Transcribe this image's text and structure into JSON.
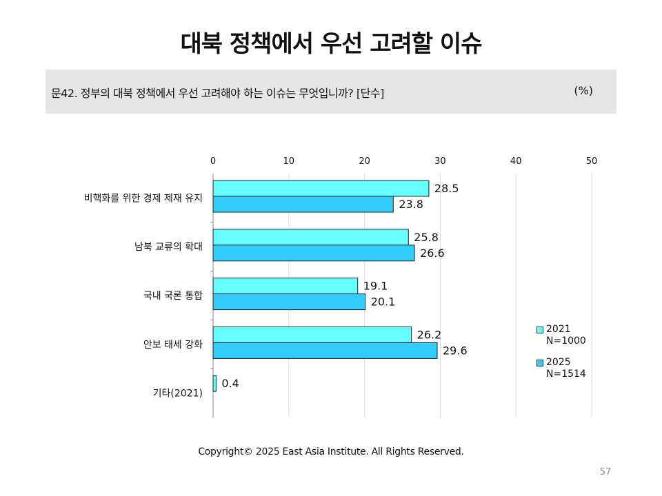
{
  "slide": {
    "title": "대북 정책에서 우선 고려할 이슈",
    "question": "문42. 정부의 대북 정책에서 우선 고려해야 하는 이슈는 무엇입니까? [단수]",
    "unit": "(%)",
    "footer": "Copyright© 2025 East Asia Institute. All Rights Reserved.",
    "page_number": "57"
  },
  "legend": [
    {
      "year": "2021",
      "n": "N=1000",
      "color": "#66ffff"
    },
    {
      "year": "2025",
      "n": "N=1514",
      "color": "#33ccff"
    }
  ],
  "chart_data": {
    "type": "bar",
    "orientation": "horizontal",
    "x_ticks": [
      "0",
      "10",
      "20",
      "30",
      "40",
      "50"
    ],
    "xlim": [
      0,
      50
    ],
    "grid": true,
    "legend_position": "right",
    "categories": [
      "비핵화를 위한 경제 제재 유지",
      "남북 교류의 확대",
      "국내 국론 통합",
      "안보 태세 강화",
      "기타(2021)"
    ],
    "series": [
      {
        "name": "2021 N=1000",
        "color": "#66ffff",
        "values": [
          28.5,
          25.8,
          19.1,
          26.2,
          0.4
        ]
      },
      {
        "name": "2025 N=1514",
        "color": "#33ccff",
        "values": [
          23.8,
          26.6,
          20.1,
          29.6,
          null
        ]
      }
    ]
  }
}
